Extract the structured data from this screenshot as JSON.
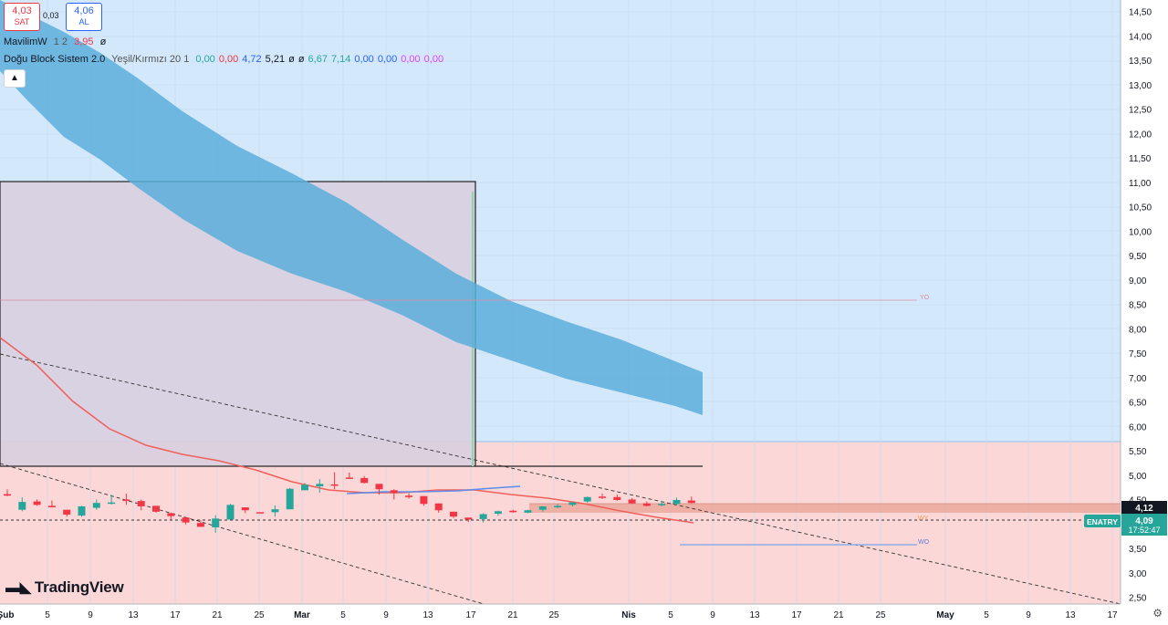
{
  "trade": {
    "sell_price": "4,03",
    "sell_label": "SAT",
    "spread": "0,03",
    "buy_price": "4,06",
    "buy_label": "AL"
  },
  "legends": {
    "mavilim": {
      "name": "MavilimW",
      "params": "1 2",
      "value": "3,95",
      "extra": "ø"
    },
    "dogu": {
      "name": "Doğu Block Sistem 2.0",
      "params": "Yeşil/Kırmızı 20 1",
      "values": [
        {
          "text": "0,00",
          "color": "#26a69a"
        },
        {
          "text": "0,00",
          "color": "#f23645"
        },
        {
          "text": "4,72",
          "color": "#2962ff"
        },
        {
          "text": "5,21",
          "color": "#131722"
        },
        {
          "text": "ø",
          "color": "#131722"
        },
        {
          "text": "ø",
          "color": "#131722"
        },
        {
          "text": "6,67",
          "color": "#26a69a"
        },
        {
          "text": "7,14",
          "color": "#26a69a"
        },
        {
          "text": "0,00",
          "color": "#2962ff"
        },
        {
          "text": "0,00",
          "color": "#2962ff"
        },
        {
          "text": "0,00",
          "color": "#e040fb"
        },
        {
          "text": "0,00",
          "color": "#e040fb"
        }
      ]
    }
  },
  "collapse_icon": "chevron-up-icon",
  "logo_text": "TradingView",
  "price_axis": {
    "ticks": [
      "14,50",
      "14,00",
      "13,50",
      "13,00",
      "12,50",
      "12,00",
      "11,50",
      "11,00",
      "10,50",
      "10,00",
      "9,50",
      "9,00",
      "8,50",
      "8,00",
      "7,50",
      "7,00",
      "6,50",
      "6,00",
      "5,50",
      "5,00",
      "4,50",
      "4,00",
      "3,50",
      "3,00",
      "2,50"
    ],
    "current_marker": "4,12",
    "symbol": "ENATRY",
    "last_price": "4,09",
    "countdown": "17:52:47"
  },
  "time_axis": {
    "labels": [
      "Şub",
      "5",
      "9",
      "13",
      "17",
      "21",
      "25",
      "Mar",
      "5",
      "9",
      "13",
      "17",
      "21",
      "25",
      "Nis",
      "5",
      "9",
      "13",
      "17",
      "21",
      "25",
      "May",
      "5",
      "9",
      "13",
      "17"
    ]
  },
  "annotations": {
    "yo": "YO",
    "wo": "WO",
    "wy": "WY"
  },
  "colors": {
    "up": "#26a69a",
    "down": "#f23645",
    "band": "#5aaedb",
    "blue_zone": "#d3e9fb",
    "red_zone": "#fcd7d7",
    "mavilim": "#2962ff"
  },
  "chart_data": {
    "type": "candlestick",
    "symbol": "ENATRY",
    "ylim": [
      2.4,
      14.7
    ],
    "last": 4.09,
    "candles": [
      [
        0,
        4.62,
        4.72,
        4.58,
        4.59
      ],
      [
        1,
        4.3,
        4.55,
        4.27,
        4.46
      ],
      [
        2,
        4.47,
        4.51,
        4.38,
        4.4
      ],
      [
        3,
        4.38,
        4.49,
        4.35,
        4.35
      ],
      [
        4,
        4.3,
        4.28,
        4.16,
        4.2
      ],
      [
        5,
        4.18,
        4.38,
        4.16,
        4.37
      ],
      [
        6,
        4.34,
        4.51,
        4.3,
        4.44
      ],
      [
        7,
        4.43,
        4.61,
        4.41,
        4.45
      ],
      [
        8,
        4.51,
        4.63,
        4.4,
        4.48
      ],
      [
        9,
        4.48,
        4.51,
        4.29,
        4.37
      ],
      [
        10,
        4.38,
        4.29,
        4.24,
        4.26
      ],
      [
        11,
        4.23,
        4.24,
        4.1,
        4.17
      ],
      [
        12,
        4.14,
        4.12,
        4.0,
        4.04
      ],
      [
        13,
        4.03,
        4.09,
        3.95,
        3.95
      ],
      [
        14,
        3.94,
        4.19,
        3.83,
        4.12
      ],
      [
        15,
        4.1,
        4.42,
        4.13,
        4.4
      ],
      [
        16,
        4.35,
        4.33,
        4.23,
        4.29
      ],
      [
        17,
        4.25,
        4.25,
        4.23,
        4.24
      ],
      [
        18,
        4.25,
        4.39,
        4.16,
        4.31
      ],
      [
        19,
        4.31,
        4.75,
        4.31,
        4.73
      ],
      [
        20,
        4.7,
        4.85,
        4.7,
        4.81
      ],
      [
        21,
        4.78,
        4.93,
        4.65,
        4.83
      ],
      [
        22,
        4.82,
        5.07,
        4.72,
        4.81
      ],
      [
        23,
        4.96,
        5.06,
        4.94,
        4.94
      ],
      [
        24,
        4.95,
        4.99,
        4.84,
        4.85
      ],
      [
        25,
        4.83,
        4.76,
        4.61,
        4.72
      ],
      [
        26,
        4.7,
        4.72,
        4.51,
        4.64
      ],
      [
        27,
        4.59,
        4.64,
        4.53,
        4.56
      ],
      [
        28,
        4.58,
        4.46,
        4.38,
        4.42
      ],
      [
        29,
        4.43,
        4.42,
        4.24,
        4.29
      ],
      [
        30,
        4.26,
        4.26,
        4.13,
        4.16
      ],
      [
        31,
        4.14,
        4.11,
        4.05,
        4.1
      ],
      [
        32,
        4.11,
        4.23,
        4.04,
        4.21
      ],
      [
        33,
        4.22,
        4.28,
        4.18,
        4.27
      ],
      [
        34,
        4.28,
        4.3,
        4.24,
        4.25
      ],
      [
        35,
        4.24,
        4.3,
        4.23,
        4.29
      ],
      [
        36,
        4.3,
        4.37,
        4.26,
        4.37
      ],
      [
        37,
        4.35,
        4.42,
        4.33,
        4.38
      ],
      [
        38,
        4.4,
        4.46,
        4.37,
        4.45
      ],
      [
        39,
        4.47,
        4.57,
        4.44,
        4.56
      ],
      [
        40,
        4.57,
        4.63,
        4.52,
        4.55
      ],
      [
        41,
        4.56,
        4.61,
        4.48,
        4.5
      ],
      [
        42,
        4.51,
        4.54,
        4.42,
        4.43
      ],
      [
        43,
        4.43,
        4.47,
        4.37,
        4.38
      ],
      [
        44,
        4.4,
        4.48,
        4.37,
        4.42
      ],
      [
        45,
        4.42,
        4.55,
        4.4,
        4.5
      ],
      [
        46,
        4.49,
        4.57,
        4.43,
        4.44
      ]
    ]
  }
}
